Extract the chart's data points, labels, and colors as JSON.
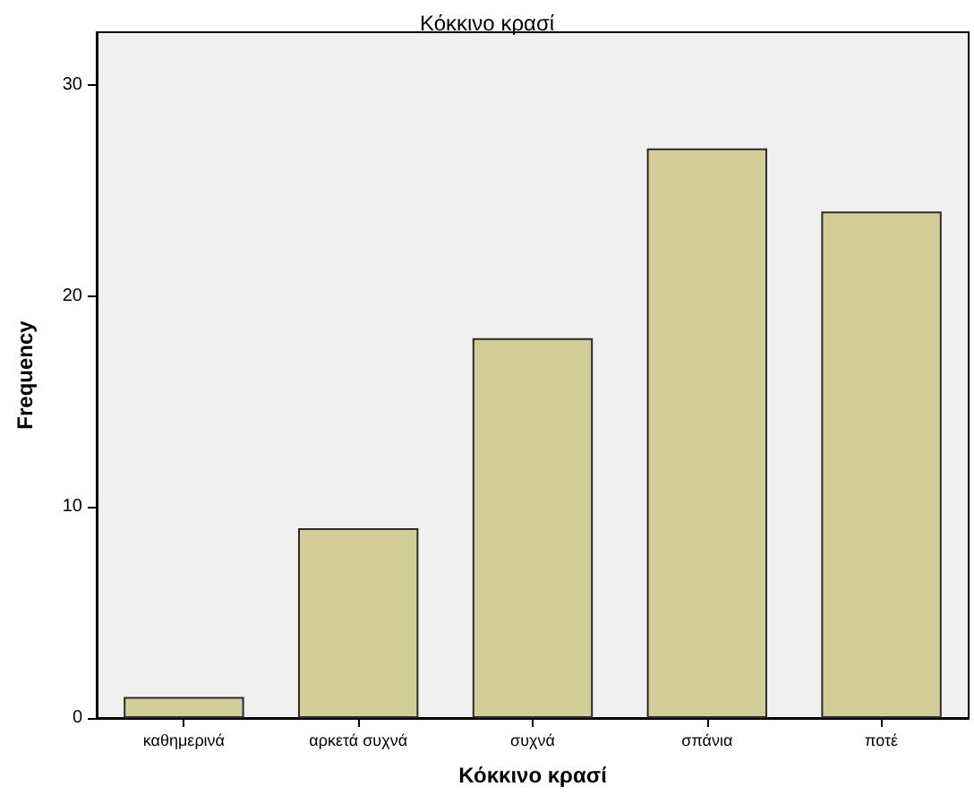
{
  "chart_data": {
    "type": "bar",
    "title": "Κόκκινο κρασί",
    "xlabel": "Κόκκινο κρασί",
    "ylabel": "Frequency",
    "categories": [
      "καθημερινά",
      "αρκετά συχνά",
      "συχνά",
      "σπάνια",
      "ποτέ"
    ],
    "values": [
      1,
      9,
      18,
      27,
      24
    ],
    "color": "#d3ce97",
    "ylim": [
      0,
      32.5
    ],
    "yticks": [
      0,
      10,
      20,
      30
    ],
    "grid": false
  }
}
